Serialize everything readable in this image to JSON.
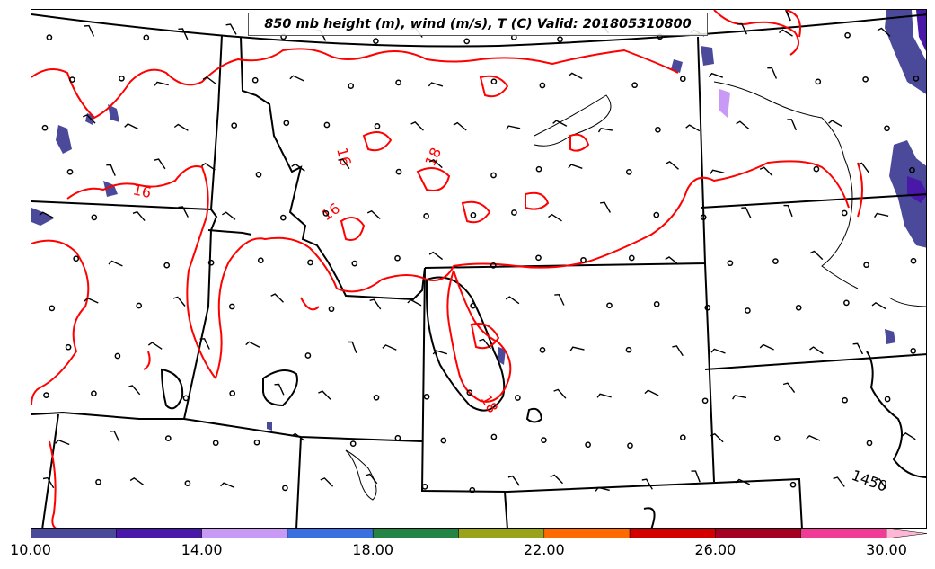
{
  "title": "850 mb height (m), wind (m/s), T (C) Valid: 201805310800",
  "colors": {
    "temperature_contour": "#ff0000",
    "height_contour": "#000000",
    "boundaries": "#000000",
    "station_marker": "#000000"
  },
  "contour_labels": {
    "temperature": [
      "16",
      "16",
      "16",
      "18",
      "18"
    ],
    "height": [
      "1450"
    ]
  },
  "colorbar": {
    "ticks": [
      "10.00",
      "14.00",
      "18.00",
      "22.00",
      "26.00",
      "30.00"
    ],
    "tick_values": [
      10,
      14,
      18,
      22,
      26,
      30
    ],
    "range": [
      10,
      31
    ],
    "bins": [
      {
        "from": 10,
        "to": 12,
        "color": "#4b4a9a"
      },
      {
        "from": 12,
        "to": 14,
        "color": "#4a18a8"
      },
      {
        "from": 14,
        "to": 16,
        "color": "#c99af5"
      },
      {
        "from": 16,
        "to": 18,
        "color": "#3a6fe0"
      },
      {
        "from": 18,
        "to": 20,
        "color": "#238443"
      },
      {
        "from": 20,
        "to": 22,
        "color": "#9aa21a"
      },
      {
        "from": 22,
        "to": 24,
        "color": "#ff6a00"
      },
      {
        "from": 24,
        "to": 26,
        "color": "#d40000"
      },
      {
        "from": 26,
        "to": 28,
        "color": "#a50021"
      },
      {
        "from": 28,
        "to": 30,
        "color": "#f03c96"
      },
      {
        "from": 30,
        "to": 31,
        "color": "#ffb6d5"
      }
    ]
  }
}
